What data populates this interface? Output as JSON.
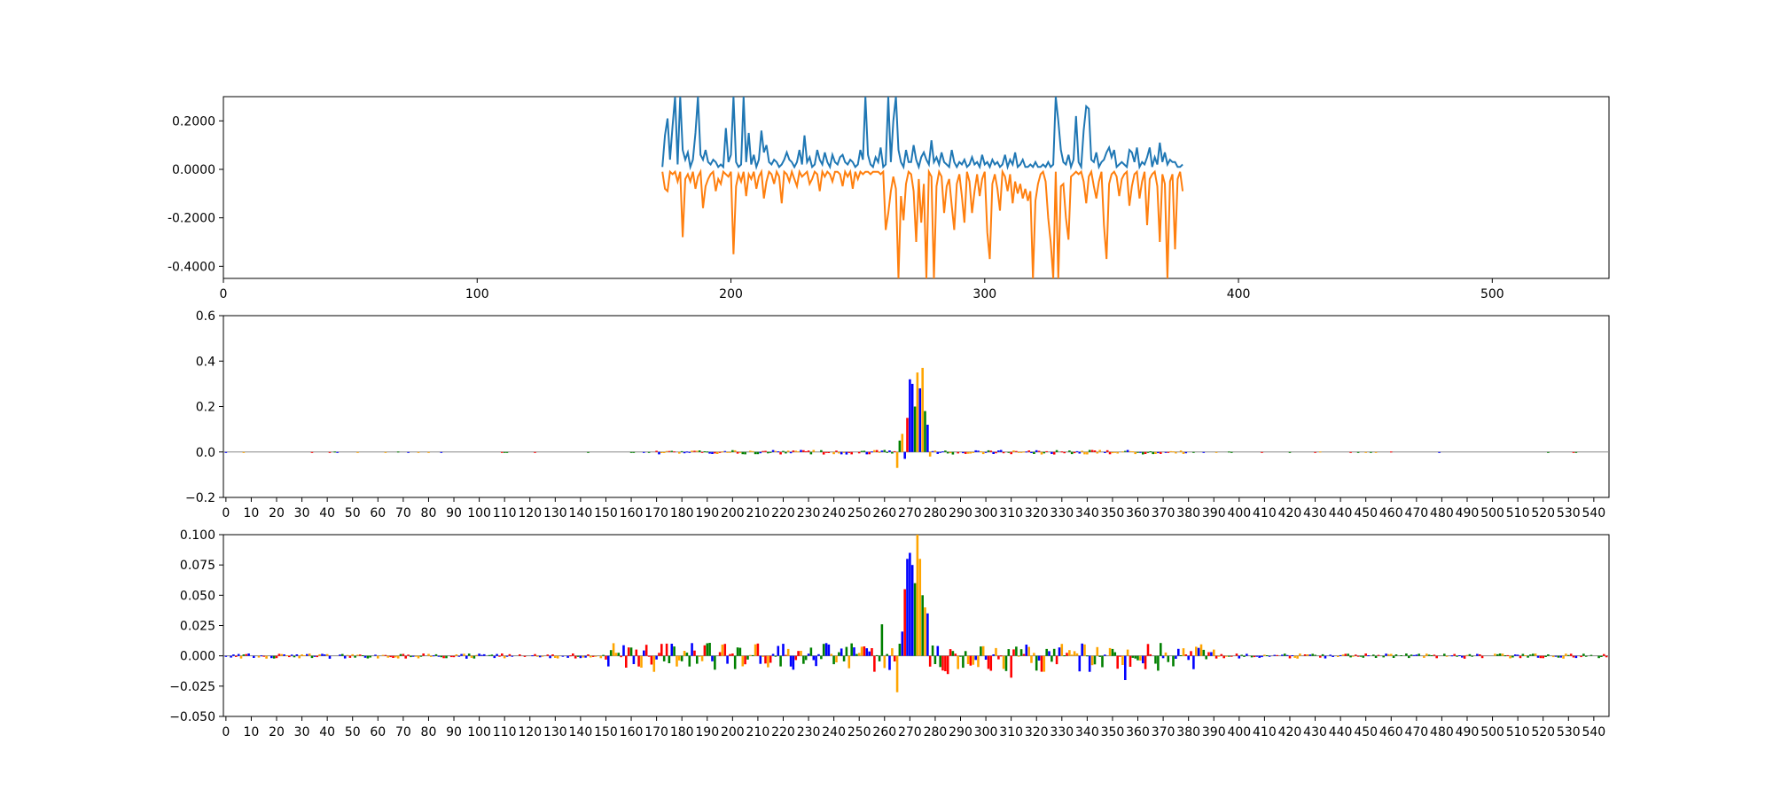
{
  "chart_data": [
    {
      "type": "line",
      "title": "",
      "xlabel": "",
      "ylabel": "",
      "xlim": [
        0,
        546
      ],
      "ylim": [
        -0.45,
        0.3
      ],
      "xticks": [
        0,
        100,
        200,
        300,
        400,
        500
      ],
      "yticks": [
        0.2,
        0.0,
        -0.2,
        -0.4
      ],
      "ytick_labels": [
        "0.2000",
        "0.0000",
        "-0.2000",
        "-0.4000"
      ],
      "grid": false,
      "series": [
        {
          "color": "#1f77b4",
          "x_start": 173,
          "x_step": 1,
          "values": [
            0.01,
            0.14,
            0.21,
            0.04,
            0.18,
            0.3,
            0.02,
            0.3,
            0.08,
            0.04,
            0.07,
            0.01,
            0.04,
            0.15,
            0.3,
            0.06,
            0.04,
            0.08,
            0.03,
            0.02,
            0.04,
            0.03,
            0.01,
            0.02,
            0.01,
            0.17,
            0.03,
            0.06,
            0.3,
            0.03,
            0.01,
            0.02,
            0.3,
            0.03,
            0.15,
            0.02,
            0.06,
            0.01,
            0.04,
            0.16,
            0.07,
            0.1,
            0.03,
            0.02,
            0.04,
            0.03,
            0.01,
            0.02,
            0.04,
            0.07,
            0.04,
            0.03,
            0.01,
            0.03,
            0.08,
            0.02,
            0.14,
            0.03,
            0.05,
            0.01,
            0.02,
            0.08,
            0.04,
            0.02,
            0.07,
            0.03,
            0.01,
            0.06,
            0.03,
            0.02,
            0.05,
            0.06,
            0.03,
            0.02,
            0.04,
            0.03,
            0.01,
            0.02,
            0.08,
            0.04,
            0.3,
            0.06,
            0.02,
            0.01,
            0.05,
            0.03,
            0.09,
            0.01,
            0.02,
            0.3,
            0.03,
            0.2,
            0.3,
            0.08,
            0.03,
            0.01,
            0.08,
            0.03,
            0.03,
            0.1,
            0.04,
            0.01,
            0.05,
            0.07,
            0.04,
            0.02,
            0.12,
            0.03,
            0.05,
            0.02,
            0.07,
            0.03,
            0.02,
            0.01,
            0.08,
            0.03,
            0.01,
            0.03,
            0.02,
            0.04,
            0.01,
            0.02,
            0.05,
            0.02,
            0.03,
            0.01,
            0.06,
            0.02,
            0.03,
            0.01,
            0.04,
            0.02,
            0.03,
            0.01,
            0.02,
            0.06,
            0.01,
            0.04,
            0.02,
            0.07,
            0.01,
            0.02,
            0.04,
            0.01,
            0.01,
            0.02,
            0.01,
            0.03,
            0.01,
            0.01,
            0.02,
            0.01,
            0.03,
            0.01,
            0.02,
            0.3,
            0.2,
            0.08,
            0.03,
            0.02,
            0.06,
            0.01,
            0.04,
            0.22,
            0.03,
            0.01,
            0.16,
            0.26,
            0.25,
            0.04,
            0.03,
            0.07,
            0.01,
            0.03,
            0.04,
            0.07,
            0.09,
            0.05,
            0.08,
            0.01,
            0.02,
            0.03,
            0.02,
            0.01,
            0.08,
            0.07,
            0.03,
            0.09,
            0.01,
            0.03,
            0.02,
            0.05,
            0.09,
            0.01,
            0.05,
            0.02,
            0.11,
            0.03,
            0.07,
            0.02,
            0.04,
            0.03,
            0.03,
            0.01,
            0.01,
            0.02
          ]
        },
        {
          "color": "#ff7f0e",
          "x_start": 173,
          "x_step": 1,
          "values": [
            -0.01,
            -0.08,
            -0.09,
            -0.01,
            -0.02,
            -0.01,
            -0.05,
            -0.01,
            -0.28,
            -0.04,
            -0.02,
            -0.05,
            -0.01,
            -0.08,
            -0.03,
            -0.01,
            -0.16,
            -0.07,
            -0.04,
            -0.02,
            -0.01,
            -0.09,
            -0.04,
            -0.06,
            -0.01,
            -0.02,
            -0.03,
            -0.01,
            -0.35,
            -0.07,
            -0.02,
            -0.05,
            -0.01,
            -0.11,
            -0.02,
            -0.04,
            -0.01,
            -0.08,
            -0.03,
            -0.01,
            -0.12,
            -0.05,
            -0.01,
            -0.02,
            -0.06,
            -0.01,
            -0.03,
            -0.14,
            -0.01,
            -0.02,
            -0.05,
            -0.01,
            -0.04,
            -0.07,
            -0.01,
            -0.03,
            -0.02,
            -0.01,
            -0.06,
            -0.04,
            -0.01,
            -0.02,
            -0.09,
            -0.01,
            -0.03,
            -0.01,
            -0.02,
            -0.05,
            -0.01,
            -0.01,
            -0.02,
            -0.07,
            -0.01,
            -0.03,
            -0.01,
            -0.08,
            -0.01,
            -0.04,
            -0.01,
            -0.02,
            -0.01,
            -0.01,
            -0.02,
            -0.01,
            -0.01,
            -0.01,
            -0.02,
            -0.01,
            -0.25,
            -0.18,
            -0.09,
            -0.03,
            -0.08,
            -0.45,
            -0.11,
            -0.21,
            -0.06,
            -0.01,
            -0.02,
            -0.09,
            -0.3,
            -0.04,
            -0.22,
            -0.06,
            -0.45,
            -0.01,
            -0.03,
            -0.45,
            -0.07,
            -0.01,
            -0.03,
            -0.18,
            -0.07,
            -0.04,
            -0.15,
            -0.25,
            -0.06,
            -0.02,
            -0.11,
            -0.22,
            -0.01,
            -0.05,
            -0.18,
            -0.09,
            -0.02,
            -0.11,
            -0.04,
            -0.01,
            -0.26,
            -0.37,
            -0.06,
            -0.02,
            -0.08,
            -0.17,
            -0.01,
            -0.03,
            -0.09,
            -0.02,
            -0.14,
            -0.05,
            -0.1,
            -0.06,
            -0.12,
            -0.08,
            -0.13,
            -0.09,
            -0.45,
            -0.13,
            -0.06,
            -0.02,
            -0.01,
            -0.05,
            -0.2,
            -0.3,
            -0.45,
            -0.01,
            -0.45,
            -0.07,
            -0.06,
            -0.2,
            -0.29,
            -0.03,
            -0.02,
            -0.01,
            -0.02,
            -0.01,
            -0.05,
            -0.14,
            -0.03,
            -0.01,
            -0.07,
            -0.12,
            -0.05,
            -0.01,
            -0.23,
            -0.37,
            -0.06,
            -0.02,
            -0.01,
            -0.03,
            -0.11,
            -0.04,
            -0.02,
            -0.01,
            -0.15,
            -0.07,
            -0.02,
            -0.01,
            -0.12,
            -0.05,
            -0.01,
            -0.23,
            -0.04,
            -0.02,
            -0.01,
            -0.07,
            -0.3,
            -0.02,
            -0.06,
            -0.45,
            -0.05,
            -0.02,
            -0.33,
            -0.04,
            -0.01,
            -0.09
          ]
        }
      ]
    },
    {
      "type": "bar",
      "title": "",
      "xlabel": "",
      "ylabel": "",
      "xlim": [
        -1,
        546
      ],
      "ylim": [
        -0.2,
        0.6
      ],
      "xticks": [
        0,
        10,
        20,
        30,
        40,
        50,
        60,
        70,
        80,
        90,
        100,
        110,
        120,
        130,
        140,
        150,
        160,
        170,
        180,
        190,
        200,
        210,
        220,
        230,
        240,
        250,
        260,
        270,
        280,
        290,
        300,
        310,
        320,
        330,
        340,
        350,
        360,
        370,
        380,
        390,
        400,
        410,
        420,
        430,
        440,
        450,
        460,
        470,
        480,
        490,
        500,
        510,
        520,
        530,
        540
      ],
      "yticks": [
        0.6,
        0.4,
        0.2,
        0.0,
        -0.2
      ],
      "ytick_labels": [
        "0.6",
        "0.4",
        "0.2",
        "0.0",
        "−0.2"
      ],
      "grid": false,
      "sequence_logo": true,
      "letter_colors": {
        "A": "#008000",
        "C": "#0000ff",
        "G": "#ffa500",
        "T": "#ff0000"
      },
      "noise_amplitude": 0.01,
      "active_range": [
        170,
        380
      ],
      "peak": {
        "x": [
          265,
          266,
          267,
          268,
          269,
          270,
          271,
          272,
          273,
          274,
          275,
          276,
          277,
          278
        ],
        "values": [
          -0.07,
          0.05,
          0.08,
          -0.03,
          0.15,
          0.32,
          0.3,
          0.2,
          0.35,
          0.28,
          0.37,
          0.18,
          0.12,
          -0.02
        ],
        "letters": [
          "G",
          "A",
          "G",
          "C",
          "T",
          "C",
          "C",
          "A",
          "G",
          "C",
          "G",
          "A",
          "C",
          "G"
        ]
      }
    },
    {
      "type": "bar",
      "title": "",
      "xlabel": "",
      "ylabel": "",
      "xlim": [
        -1,
        546
      ],
      "ylim": [
        -0.05,
        0.1
      ],
      "xticks": [
        0,
        10,
        20,
        30,
        40,
        50,
        60,
        70,
        80,
        90,
        100,
        110,
        120,
        130,
        140,
        150,
        160,
        170,
        180,
        190,
        200,
        210,
        220,
        230,
        240,
        250,
        260,
        270,
        280,
        290,
        300,
        310,
        320,
        330,
        340,
        350,
        360,
        370,
        380,
        390,
        400,
        410,
        420,
        430,
        440,
        450,
        460,
        470,
        480,
        490,
        500,
        510,
        520,
        530,
        540
      ],
      "yticks": [
        0.1,
        0.075,
        0.05,
        0.025,
        0.0,
        -0.025,
        -0.05
      ],
      "ytick_labels": [
        "0.100",
        "0.075",
        "0.050",
        "0.025",
        "0.000",
        "−0.025",
        "−0.050"
      ],
      "grid": false,
      "sequence_logo": true,
      "letter_colors": {
        "A": "#008000",
        "C": "#0000ff",
        "G": "#ffa500",
        "T": "#ff0000"
      },
      "noise_amplitude": 0.012,
      "active_range": [
        150,
        390
      ],
      "peak": {
        "x": [
          259,
          260,
          265,
          266,
          267,
          268,
          269,
          270,
          271,
          272,
          273,
          274,
          275,
          276,
          277,
          285,
          310,
          355
        ],
        "values": [
          0.026,
          -0.01,
          -0.03,
          0.01,
          0.02,
          0.055,
          0.08,
          0.085,
          0.075,
          0.06,
          0.1,
          0.08,
          0.05,
          0.04,
          0.035,
          -0.015,
          -0.018,
          -0.02
        ],
        "letters": [
          "A",
          "G",
          "G",
          "A",
          "C",
          "T",
          "C",
          "C",
          "C",
          "A",
          "G",
          "G",
          "A",
          "G",
          "C",
          "T",
          "T",
          "C"
        ]
      }
    }
  ]
}
